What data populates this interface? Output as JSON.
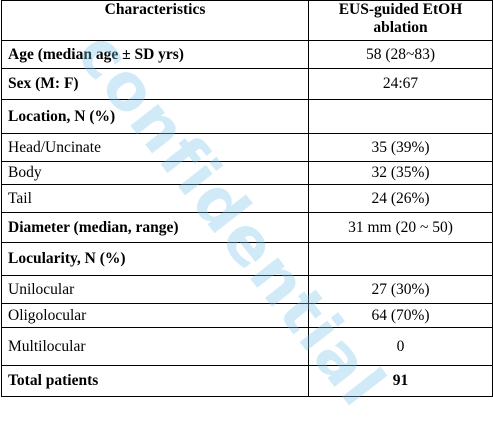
{
  "table": {
    "headers": [
      "Characteristics",
      "EUS-guided EtOH ablation"
    ],
    "rows": [
      {
        "label": "Age (median age ± SD yrs)",
        "value": "58 (28~83)"
      },
      {
        "label": "Sex (M: F)",
        "value": "24:67"
      },
      {
        "label": "Location, N (%)",
        "value": ""
      },
      {
        "label": "Head/Uncinate",
        "value": "35 (39%)"
      },
      {
        "label": "Body",
        "value": "32 (35%)"
      },
      {
        "label": "Tail",
        "value": "24 (26%)"
      },
      {
        "label": "Diameter (median, range)",
        "value": "31 mm (20 ~ 50)"
      },
      {
        "label": "Locularity, N (%)",
        "value": ""
      },
      {
        "label": "Unilocular",
        "value": "27 (30%)"
      },
      {
        "label": "Oligolocular",
        "value": "64 (70%)"
      },
      {
        "label": "Multilocular",
        "value": "0"
      },
      {
        "label": "Total patients",
        "value": "91"
      }
    ]
  },
  "watermark": {
    "text": "confidential",
    "color": "#78c3eb"
  }
}
